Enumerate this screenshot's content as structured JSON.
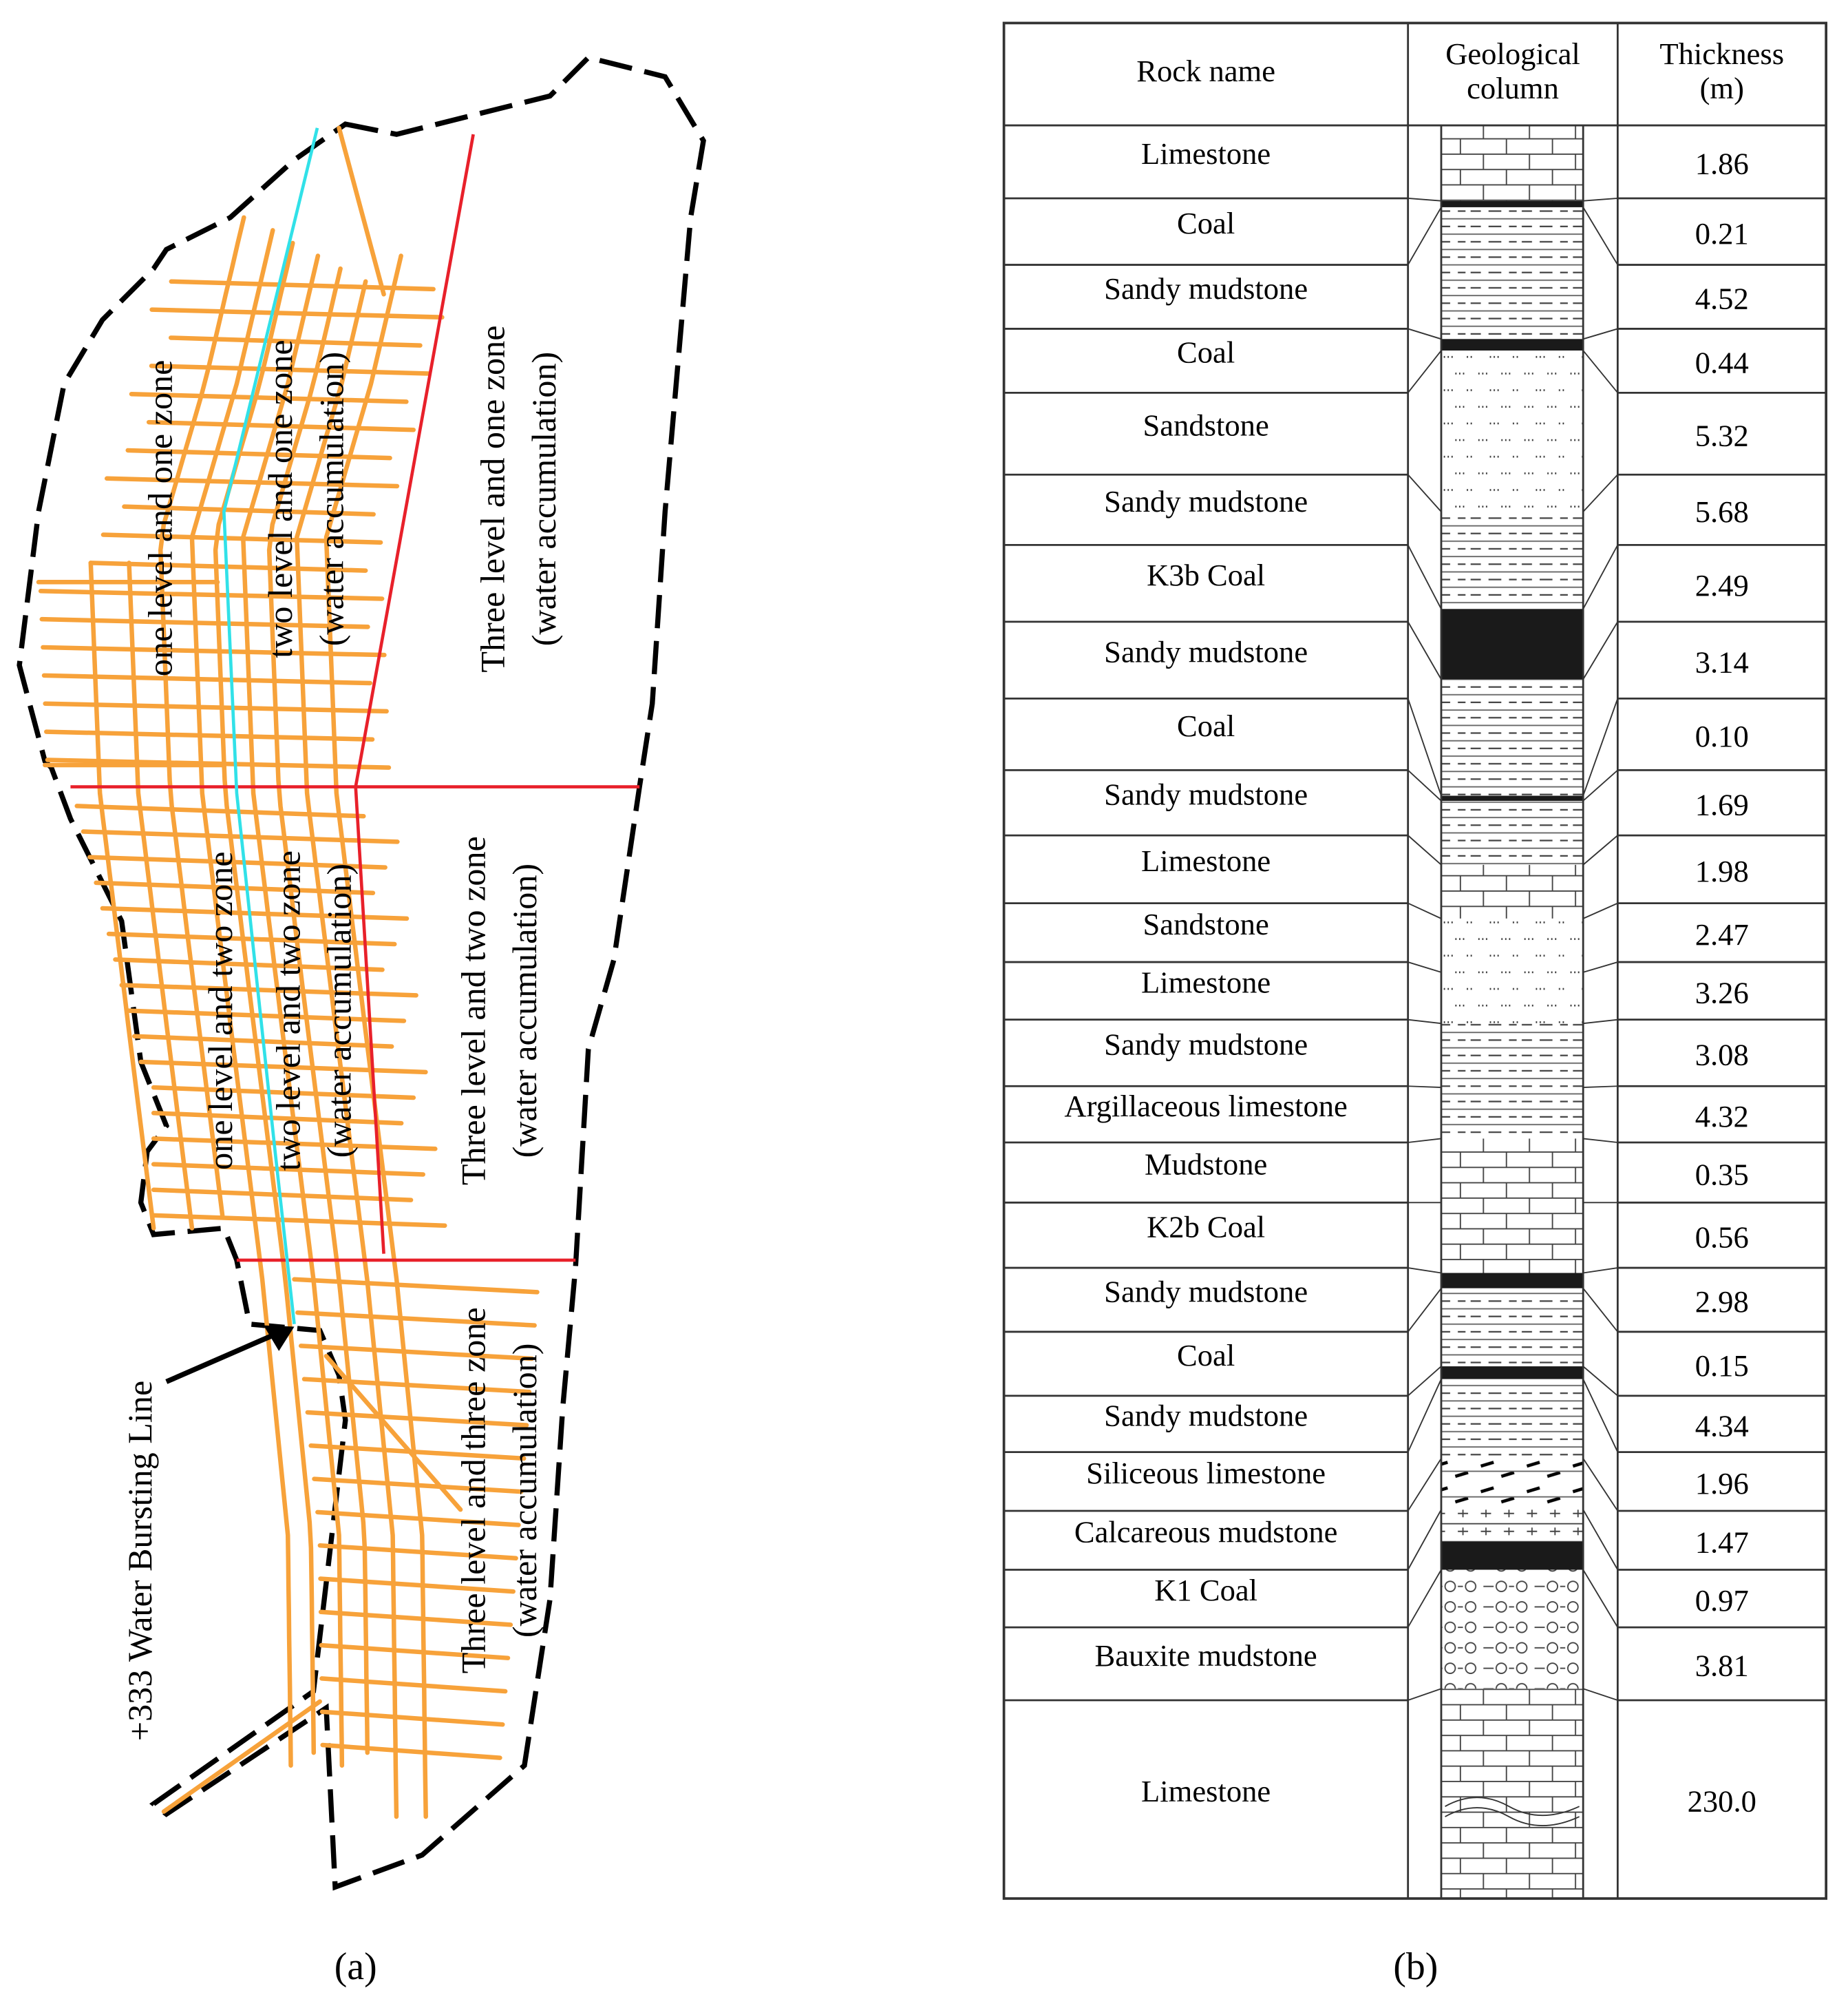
{
  "panel_a": {
    "labels": [
      "one level and one zone",
      "two level and one zone",
      "(water accumulation)",
      "Three level and one zone",
      "(water accumulation)",
      "one level and two zone",
      "two level and two zone",
      "(water accumulation)",
      "Three level and two zone",
      "(water accumulation)",
      "Three level and three zone",
      "(water accumulation)"
    ],
    "annotation": "+333 Water Bursting Line",
    "caption": "(a)"
  },
  "panel_b": {
    "headers": [
      [
        "Rock name"
      ],
      [
        "Geological",
        "column"
      ],
      [
        "Thickness",
        "(m)"
      ]
    ],
    "rows": [
      [
        "Limestone",
        "1.86"
      ],
      [
        "Coal",
        "0.21"
      ],
      [
        "Sandy mudstone",
        "4.52"
      ],
      [
        "Coal",
        "0.44"
      ],
      [
        "Sandstone",
        "5.32"
      ],
      [
        "Sandy mudstone",
        "5.68"
      ],
      [
        "K3b Coal",
        "2.49"
      ],
      [
        "Sandy mudstone",
        "3.14"
      ],
      [
        "Coal",
        "0.10"
      ],
      [
        "Sandy mudstone",
        "1.69"
      ],
      [
        "Limestone",
        "1.98"
      ],
      [
        "Sandstone",
        "2.47"
      ],
      [
        "Limestone",
        "3.26"
      ],
      [
        "Sandy mudstone",
        "3.08"
      ],
      [
        "Argillaceous limestone",
        "4.32"
      ],
      [
        "Mudstone",
        "0.35"
      ],
      [
        "K2b Coal",
        "0.56"
      ],
      [
        "Sandy mudstone",
        "2.98"
      ],
      [
        "Coal",
        "0.15"
      ],
      [
        "Sandy mudstone",
        "4.34"
      ],
      [
        "Siliceous limestone",
        "1.96"
      ],
      [
        "Calcareous mudstone",
        "1.47"
      ],
      [
        "K1 Coal",
        "0.97"
      ],
      [
        "Bauxite mudstone",
        "3.81"
      ],
      [
        "Limestone",
        "230.0"
      ]
    ],
    "caption": "(b)"
  }
}
